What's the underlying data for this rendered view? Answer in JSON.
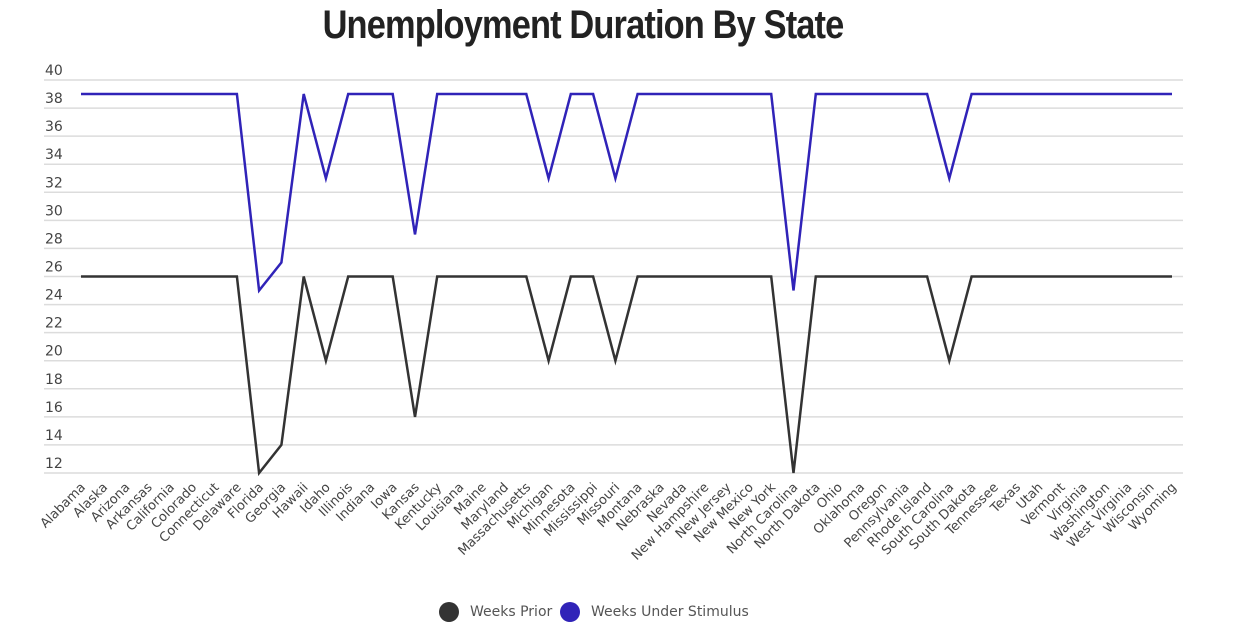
{
  "chart_data": {
    "type": "line",
    "title": "Unemployment Duration By State",
    "xlabel": "",
    "ylabel": "",
    "ylim": [
      12,
      40
    ],
    "yticks": [
      40,
      38,
      36,
      34,
      32,
      30,
      28,
      26,
      24,
      22,
      20,
      18,
      16,
      14,
      12
    ],
    "grid": true,
    "legend_position": "bottom-center",
    "categories": [
      "Alabama",
      "Alaska",
      "Arizona",
      "Arkansas",
      "California",
      "Colorado",
      "Connecticut",
      "Delaware",
      "Florida",
      "Georgia",
      "Hawaii",
      "Idaho",
      "Illinois",
      "Indiana",
      "Iowa",
      "Kansas",
      "Kentucky",
      "Louisiana",
      "Maine",
      "Maryland",
      "Massachusetts",
      "Michigan",
      "Minnesota",
      "Mississippi",
      "Missouri",
      "Montana",
      "Nebraska",
      "Nevada",
      "New Hampshire",
      "New Jersey",
      "New Mexico",
      "New York",
      "North Carolina",
      "North Dakota",
      "Ohio",
      "Oklahoma",
      "Oregon",
      "Pennsylvania",
      "Rhode Island",
      "South Carolina",
      "South Dakota",
      "Tennessee",
      "Texas",
      "Utah",
      "Vermont",
      "Virginia",
      "Washington",
      "West Virginia",
      "Wisconsin",
      "Wyoming"
    ],
    "series": [
      {
        "name": "Weeks Prior",
        "color": "#333333",
        "values": [
          26,
          26,
          26,
          26,
          26,
          26,
          26,
          26,
          12,
          14,
          26,
          20,
          26,
          26,
          26,
          16,
          26,
          26,
          26,
          26,
          26,
          20,
          26,
          26,
          20,
          26,
          26,
          26,
          26,
          26,
          26,
          26,
          12,
          26,
          26,
          26,
          26,
          26,
          26,
          20,
          26,
          26,
          26,
          26,
          26,
          26,
          26,
          26,
          26,
          26
        ]
      },
      {
        "name": "Weeks Under Stimulus",
        "color": "#3023b8",
        "values": [
          39,
          39,
          39,
          39,
          39,
          39,
          39,
          39,
          25,
          27,
          39,
          33,
          39,
          39,
          39,
          29,
          39,
          39,
          39,
          39,
          39,
          33,
          39,
          39,
          33,
          39,
          39,
          39,
          39,
          39,
          39,
          39,
          25,
          39,
          39,
          39,
          39,
          39,
          39,
          33,
          39,
          39,
          39,
          39,
          39,
          39,
          39,
          39,
          39,
          39
        ]
      }
    ]
  }
}
